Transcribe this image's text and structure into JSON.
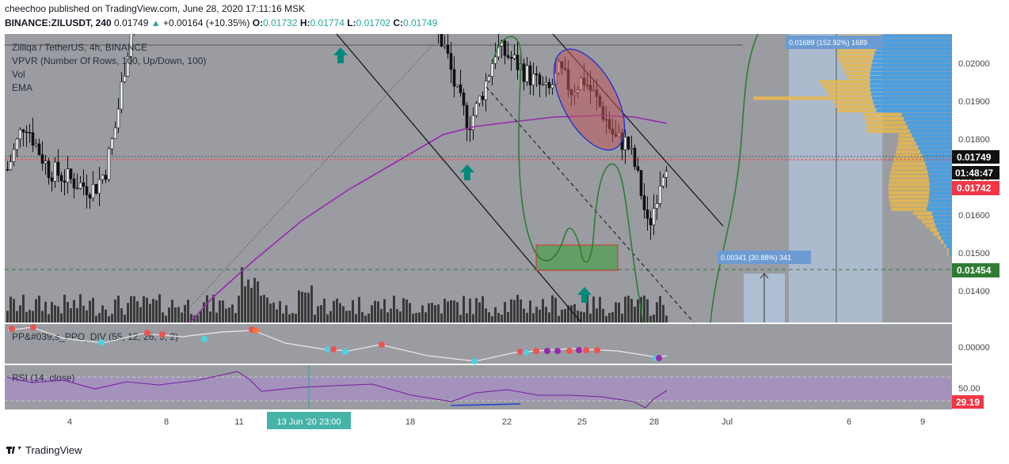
{
  "header": {
    "line1": "cheechoo published on TradingView.com, June 28, 2020 17:11:16 MSK",
    "symbol": "BINANCE:ZILUSDT, 240",
    "price": "0.01749",
    "change": "+0.00164 (+10.35%)",
    "o_label": "O:",
    "o_val": "0.01732",
    "h_label": "H:",
    "h_val": "0.01774",
    "l_label": "L:",
    "l_val": "0.01702",
    "c_label": "C:",
    "c_val": "0.01749"
  },
  "legend": {
    "title": "Zilliqa / TetherUS, 4h, BINANCE",
    "vpvr": "VPVR (Number Of Rows, 100, Up/Down, 100)",
    "vol": "Vol",
    "ema": "EMA",
    "ppo": "PP&#039;s_PPO_DIV (55, 12, 26, 9, 2)",
    "rsi": "RSI (14, close)"
  },
  "price_axis": {
    "ticks": [
      "0.02000",
      "0.01900",
      "0.01800",
      "0.01700",
      "0.01600",
      "0.01500",
      "0.01400"
    ],
    "last_price": "0.01749",
    "countdown": "01:48:47",
    "ema_label": "0.01742",
    "support_label": "0.01454"
  },
  "ppo_axis": {
    "tick": "0.00000"
  },
  "rsi_axis": {
    "tick": "50.00",
    "value": "29.19"
  },
  "time_axis": {
    "ticks": [
      "4",
      "8",
      "11",
      "13 Jun '20   23:00",
      "18",
      "22",
      "25",
      "28",
      "Jul",
      "6",
      "9"
    ]
  },
  "annotations": {
    "measure_top": "0.01689 (152.92%) 1689",
    "measure_bottom": "0.00341 (30.88%) 341"
  },
  "colors": {
    "pane_bg": "#9a9ca2",
    "rsi_band": "#a78fc4",
    "up": "#26a69a",
    "down": "#ef5350",
    "ema": "#9c27b0",
    "support": "#2e7d32",
    "vpvr_up": "#4a9fe0",
    "vpvr_down": "#e8b84b"
  },
  "footer": {
    "brand": "TradingView"
  },
  "chart_data": [
    {
      "type": "candlestick",
      "title": "Zilliqa / TetherUS, 4h, BINANCE",
      "x_range": [
        "2020-06-01",
        "2020-07-10"
      ],
      "ylim": [
        0.0132,
        0.021
      ],
      "last_close": 0.01749,
      "ema_value": 0.01742,
      "support_level": 0.01454,
      "ohlc_approx": [
        {
          "x": "2020-06-01",
          "close": 0.0172
        },
        {
          "x": "2020-06-05",
          "close": 0.0176
        },
        {
          "x": "2020-06-07",
          "close": 0.02
        },
        {
          "x": "2020-06-12",
          "close": 0.0218
        },
        {
          "x": "2020-06-19",
          "close": 0.0205
        },
        {
          "x": "2020-06-20",
          "close": 0.0185
        },
        {
          "x": "2020-06-22",
          "close": 0.0202
        },
        {
          "x": "2020-06-23",
          "close": 0.0198
        },
        {
          "x": "2020-06-25",
          "close": 0.0193
        },
        {
          "x": "2020-06-26",
          "close": 0.0178
        },
        {
          "x": "2020-06-27",
          "close": 0.0163
        },
        {
          "x": "2020-06-27",
          "close": 0.0152
        },
        {
          "x": "2020-06-28",
          "close": 0.01749
        }
      ]
    },
    {
      "type": "line",
      "title": "RSI (14, close)",
      "ylim": [
        0,
        100
      ],
      "last_value": 29.19
    }
  ]
}
